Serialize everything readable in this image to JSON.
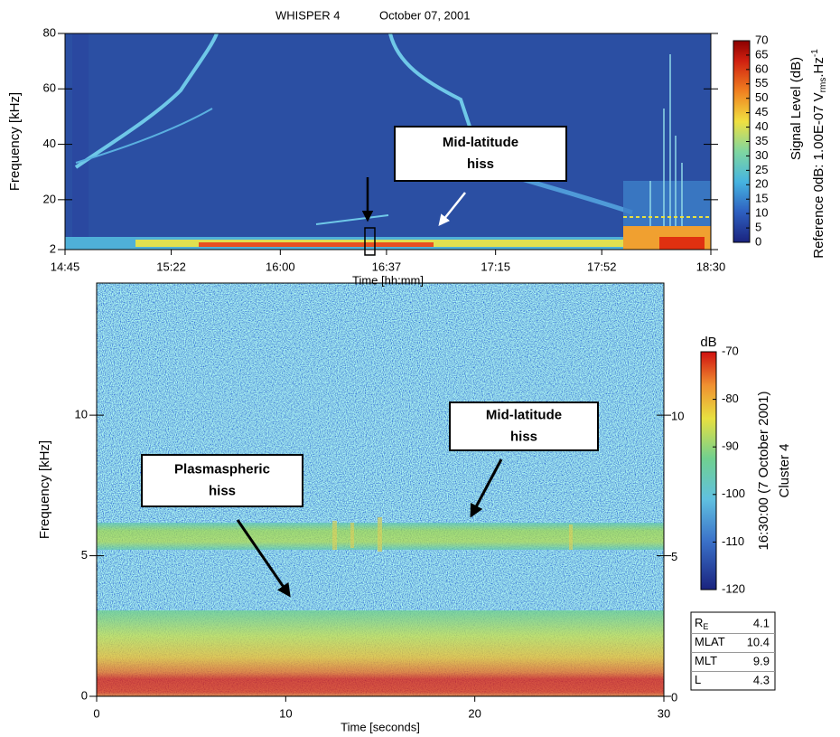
{
  "chart_data": [
    {
      "type": "spectrogram",
      "title": "WHISPER 4",
      "subtitle": "October 07, 2001",
      "x_label": "Time [hh:mm]",
      "y_label": "Frequency [kHz]",
      "xlim": [
        "14:45",
        "18:30"
      ],
      "xticks": [
        "14:45",
        "15:22",
        "16:00",
        "16:37",
        "17:15",
        "17:52",
        "18:30"
      ],
      "ylim": [
        2,
        80
      ],
      "yticks": [
        2,
        20,
        40,
        60,
        80
      ],
      "clim": [
        0,
        70
      ],
      "cticks": [
        0,
        5,
        10,
        15,
        20,
        25,
        30,
        35,
        40,
        45,
        50,
        55,
        60,
        65,
        70
      ],
      "colorbar_label": "Signal Level (dB)",
      "colorbar_reference": [
        "Reference 0dB: 1.00E-07 V",
        "rms",
        ".Hz",
        "-1"
      ],
      "annotations": [
        [
          "Mid-latitude",
          "hiss"
        ]
      ]
    },
    {
      "type": "spectrogram",
      "x_label": "Time [seconds]",
      "y_label": "Frequency [kHz]",
      "xlim": [
        0,
        30
      ],
      "xticks": [
        0,
        10,
        20,
        30
      ],
      "ylim": [
        0,
        14.7
      ],
      "yticks": [
        0,
        5,
        10
      ],
      "clim": [
        -120,
        -70
      ],
      "cticks": [
        -120,
        -110,
        -100,
        -90,
        -80,
        -70
      ],
      "colorbar_title": "dB",
      "colorbar_label": "16:30:00 (7 October 2001)",
      "colorbar_sublabel": "Cluster 4",
      "info": [
        {
          "name": "R",
          "sub": "E",
          "value": 4.1
        },
        {
          "name": "MLAT",
          "value": 10.4
        },
        {
          "name": "MLT",
          "value": 9.9
        },
        {
          "name": "L",
          "value": 4.3
        }
      ],
      "annotations": [
        [
          "Mid-latitude",
          "hiss"
        ],
        [
          "Plasmaspheric",
          "hiss"
        ]
      ]
    }
  ]
}
